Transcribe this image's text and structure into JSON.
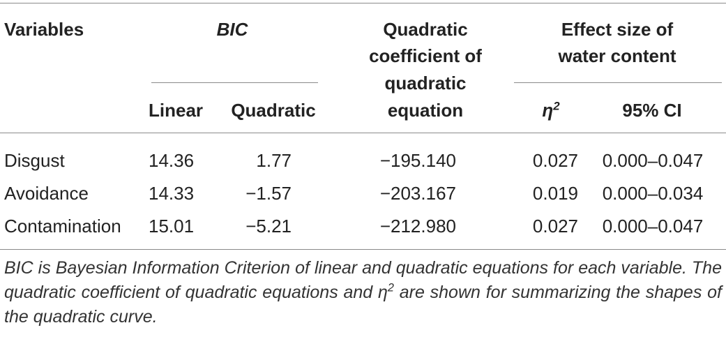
{
  "table": {
    "headers": {
      "variables": "Variables",
      "bic": "BIC",
      "quadratic_coefficient": [
        "Quadratic",
        "coefficient of",
        "quadratic",
        "equation"
      ],
      "effect_size": [
        "Effect size of",
        "water content"
      ],
      "linear": "Linear",
      "quadratic": "Quadratic",
      "eta": {
        "symbol": "η",
        "superscript": "2"
      },
      "ci": "95% CI"
    },
    "rows": [
      [
        "Disgust",
        "14.36",
        "1.77",
        "−195.140",
        "0.027",
        "0.000–0.047"
      ],
      [
        "Avoidance",
        "14.33",
        "−1.57",
        "−203.167",
        "0.019",
        "0.000–0.034"
      ],
      [
        "Contamination",
        "15.01",
        "−5.21",
        "−212.980",
        "0.027",
        "0.000–0.047"
      ]
    ]
  },
  "footnote": {
    "before": "BIC is Bayesian Information Criterion of linear and quadratic equations for each variable. The quadratic coefficient of quadratic equations and ",
    "symbol": "η",
    "superscript": "2",
    "after": " are shown for summarizing the shapes of the quadratic curve."
  }
}
